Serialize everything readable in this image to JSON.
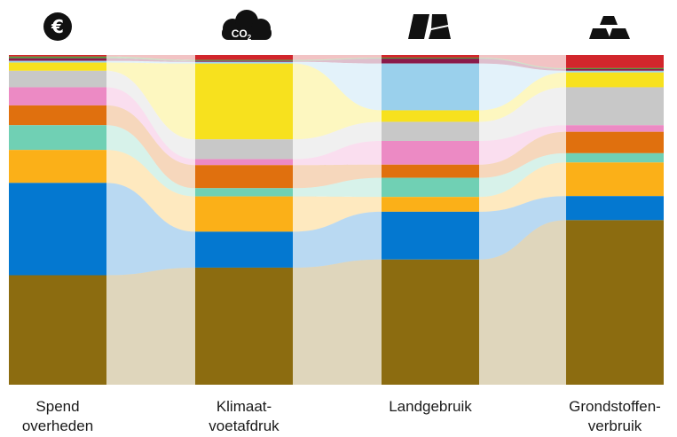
{
  "chart_data": {
    "type": "alluvial",
    "title": "",
    "columns": [
      {
        "label_lines": [
          "Spend",
          "overheden"
        ],
        "icon": "euro-icon"
      },
      {
        "label_lines": [
          "Klimaat-",
          "voetafdruk"
        ],
        "icon": "co2-cloud-icon"
      },
      {
        "label_lines": [
          "Landgebruik"
        ],
        "icon": "land-parcel-icon"
      },
      {
        "label_lines": [
          "Grondstoffen-",
          "verbruik"
        ],
        "icon": "stacked-bars-icon"
      }
    ],
    "co2_text": "CO",
    "co2_sub": "2",
    "categories": [
      {
        "color": "#d2262c",
        "values": [
          0.5,
          1.5,
          0.8,
          4.0
        ]
      },
      {
        "color": "#4a9e3a",
        "values": [
          0.5,
          0.3,
          0.3,
          0.3
        ]
      },
      {
        "color": "#8a1a4a",
        "values": [
          0.8,
          0.3,
          1.5,
          0.5
        ]
      },
      {
        "color": "#9ad0ec",
        "values": [
          0.5,
          0.5,
          14.2,
          0.5
        ]
      },
      {
        "color": "#f7e11e",
        "values": [
          2.5,
          23.0,
          3.5,
          4.5
        ]
      },
      {
        "color": "#c8c8c8",
        "values": [
          5.0,
          6.0,
          5.8,
          11.5
        ]
      },
      {
        "color": "#ec8ac4",
        "values": [
          5.5,
          1.8,
          7.2,
          2.0
        ]
      },
      {
        "color": "#e0700e",
        "values": [
          6.0,
          7.0,
          4.0,
          6.5
        ]
      },
      {
        "color": "#70d0b4",
        "values": [
          7.5,
          2.5,
          5.8,
          2.8
        ]
      },
      {
        "color": "#fbb018",
        "values": [
          10.0,
          10.7,
          4.5,
          10.2
        ]
      },
      {
        "color": "#0478d0",
        "values": [
          28.0,
          10.9,
          14.5,
          7.3
        ]
      },
      {
        "color": "#8c6c10",
        "values": [
          33.2,
          35.5,
          38.0,
          49.9
        ]
      }
    ]
  }
}
